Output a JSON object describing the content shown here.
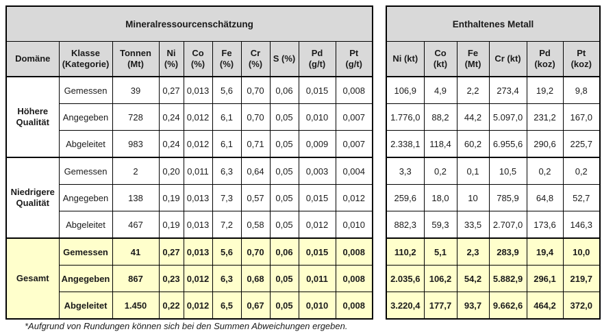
{
  "chart_data": {
    "type": "table",
    "tables": [
      {
        "title": "Mineralressourcenschätzung",
        "headers": [
          "Domäne",
          "Klasse\n(Kategorie)",
          "Tonnen\n(Mt)",
          "Ni\n(%)",
          "Co\n(%)",
          "Fe\n(%)",
          "Cr\n(%)",
          "S (%)",
          "Pd\n(g/t)",
          "Pt\n(g/t)"
        ]
      },
      {
        "title": "Enthaltenes Metall",
        "headers": [
          "Ni (kt)",
          "Co\n(kt)",
          "Fe\n(Mt)",
          "Cr (kt)",
          "Pd\n(koz)",
          "Pt\n(koz)"
        ]
      }
    ],
    "sections": [
      {
        "domain": "Höhere Qualität",
        "highlight": false,
        "rows": [
          {
            "klasse": "Gemessen",
            "left": [
              "39",
              "0,27",
              "0,013",
              "5,6",
              "0,70",
              "0,06",
              "0,015",
              "0,008"
            ],
            "right": [
              "106,9",
              "4,9",
              "2,2",
              "273,4",
              "19,2",
              "9,8"
            ]
          },
          {
            "klasse": "Angegeben",
            "left": [
              "728",
              "0,24",
              "0,012",
              "6,1",
              "0,70",
              "0,05",
              "0,010",
              "0,007"
            ],
            "right": [
              "1.776,0",
              "88,2",
              "44,2",
              "5.097,0",
              "231,2",
              "167,0"
            ]
          },
          {
            "klasse": "Abgeleitet",
            "left": [
              "983",
              "0,24",
              "0,012",
              "6,1",
              "0,71",
              "0,05",
              "0,009",
              "0,007"
            ],
            "right": [
              "2.338,1",
              "118,4",
              "60,2",
              "6.955,6",
              "290,6",
              "225,7"
            ]
          }
        ]
      },
      {
        "domain": "Niedrigere Qualität",
        "highlight": false,
        "rows": [
          {
            "klasse": "Gemessen",
            "left": [
              "2",
              "0,20",
              "0,011",
              "6,3",
              "0,64",
              "0,05",
              "0,003",
              "0,004"
            ],
            "right": [
              "3,3",
              "0,2",
              "0,1",
              "10,5",
              "0,2",
              "0,2"
            ]
          },
          {
            "klasse": "Angegeben",
            "left": [
              "138",
              "0,19",
              "0,013",
              "7,3",
              "0,57",
              "0,05",
              "0,015",
              "0,012"
            ],
            "right": [
              "259,6",
              "18,0",
              "10",
              "785,9",
              "64,8",
              "52,7"
            ]
          },
          {
            "klasse": "Abgeleitet",
            "left": [
              "467",
              "0,19",
              "0,013",
              "7,2",
              "0,58",
              "0,05",
              "0,012",
              "0,010"
            ],
            "right": [
              "882,3",
              "59,3",
              "33,5",
              "2.707,0",
              "173,6",
              "146,3"
            ]
          }
        ]
      },
      {
        "domain": "Gesamt",
        "highlight": true,
        "rows": [
          {
            "klasse": "Gemessen",
            "left": [
              "41",
              "0,27",
              "0,013",
              "5,6",
              "0,70",
              "0,06",
              "0,015",
              "0,008"
            ],
            "right": [
              "110,2",
              "5,1",
              "2,3",
              "283,9",
              "19,4",
              "10,0"
            ]
          },
          {
            "klasse": "Angegeben",
            "left": [
              "867",
              "0,23",
              "0,012",
              "6,3",
              "0,68",
              "0,05",
              "0,011",
              "0,008"
            ],
            "right": [
              "2.035,6",
              "106,2",
              "54,2",
              "5.882,9",
              "296,1",
              "219,7"
            ]
          },
          {
            "klasse": "Abgeleitet",
            "left": [
              "1.450",
              "0,22",
              "0,012",
              "6,5",
              "0,67",
              "0,05",
              "0,010",
              "0,008"
            ],
            "right": [
              "3.220,4",
              "177,7",
              "93,7",
              "9.662,6",
              "464,2",
              "372,0"
            ]
          }
        ]
      }
    ],
    "footnote": "*Aufgrund von Rundungen können sich bei den Summen Abweichungen ergeben."
  },
  "colors": {
    "header_bg": "#d9d9d9",
    "total_row_bg": "#ffffcc",
    "border": "#000000",
    "background": "#ffffff"
  }
}
